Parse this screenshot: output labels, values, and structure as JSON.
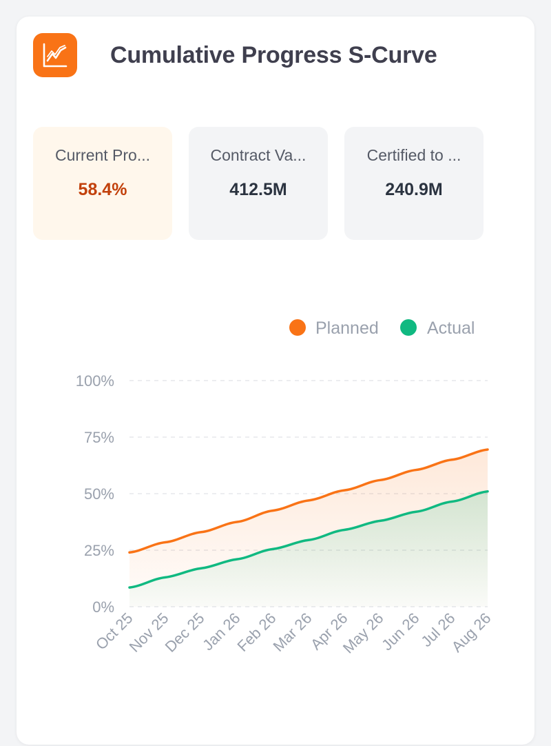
{
  "card": {
    "title": "Cumulative Progress S-Curve",
    "icon": "line-chart-icon",
    "accent_color": "#f97316"
  },
  "stats": [
    {
      "label": "Current Pro...",
      "value": "58.4%"
    },
    {
      "label": "Contract Va...",
      "value": "412.5M"
    },
    {
      "label": "Certified to ...",
      "value": "240.9M"
    }
  ],
  "chart_data": {
    "type": "line",
    "categories": [
      "Oct 25",
      "Nov 25",
      "Dec 25",
      "Jan 26",
      "Feb 26",
      "Mar 26",
      "Apr 26",
      "May 26",
      "Jun 26",
      "Jul 26",
      "Aug 26"
    ],
    "series": [
      {
        "name": "Planned",
        "color": "#f97316",
        "values": [
          24,
          28.5,
          33,
          37.5,
          42.5,
          47,
          51.5,
          56,
          60.5,
          65,
          69.5
        ]
      },
      {
        "name": "Actual",
        "color": "#10b981",
        "values": [
          8.5,
          13,
          17,
          21,
          25.5,
          29.5,
          34,
          38,
          42,
          46.5,
          51
        ]
      }
    ],
    "y_ticks": [
      "0%",
      "25%",
      "50%",
      "75%",
      "100%"
    ],
    "ylim": [
      0,
      100
    ],
    "grid": true,
    "legend_position": "top-right",
    "area_fill": true
  }
}
